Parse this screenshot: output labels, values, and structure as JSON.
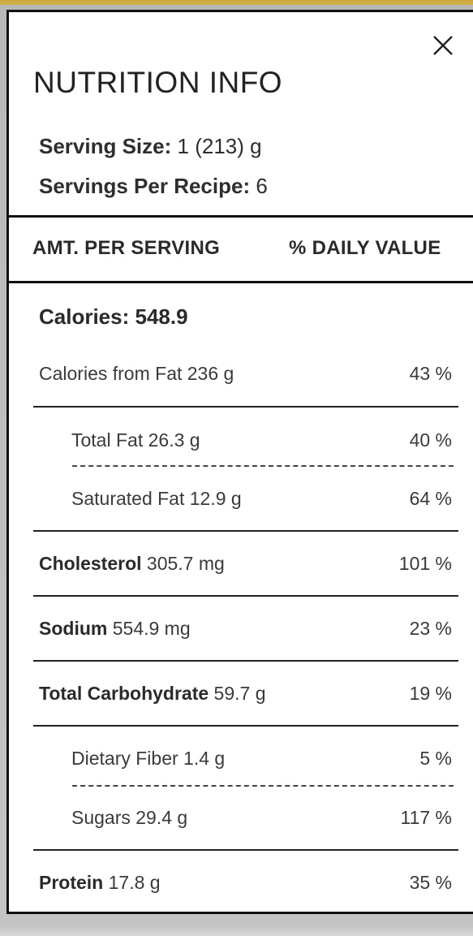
{
  "modal": {
    "title": "NUTRITION INFO",
    "close_icon": "close-icon"
  },
  "serving": {
    "size_label": "Serving Size:",
    "size_value": "1 (213) g",
    "per_recipe_label": "Servings Per Recipe:",
    "per_recipe_value": "6"
  },
  "header": {
    "left": "AMT. PER SERVING",
    "right": "% DAILY VALUE"
  },
  "calories": {
    "label": "Calories:",
    "value": "548.9"
  },
  "rows": [
    {
      "name": "Calories from Fat",
      "amount": "236 g",
      "pct": "43 %"
    },
    {
      "name": "Total Fat",
      "amount": "26.3 g",
      "pct": "40 %"
    },
    {
      "name": "Saturated Fat",
      "amount": "12.9 g",
      "pct": "64 %"
    },
    {
      "name": "Cholesterol",
      "amount": "305.7 mg",
      "pct": "101 %"
    },
    {
      "name": "Sodium",
      "amount": "554.9 mg",
      "pct": "23 %"
    },
    {
      "name": "Total Carbohydrate",
      "amount": "59.7 g",
      "pct": "19 %"
    },
    {
      "name": "Dietary Fiber",
      "amount": "1.4 g",
      "pct": "5 %"
    },
    {
      "name": "Sugars",
      "amount": "29.4 g",
      "pct": "117 %"
    },
    {
      "name": "Protein",
      "amount": "17.8 g",
      "pct": "35 %"
    }
  ],
  "colors": {
    "accent_gold": "#c9a640",
    "border": "#111111",
    "text": "#2a2a2a"
  }
}
